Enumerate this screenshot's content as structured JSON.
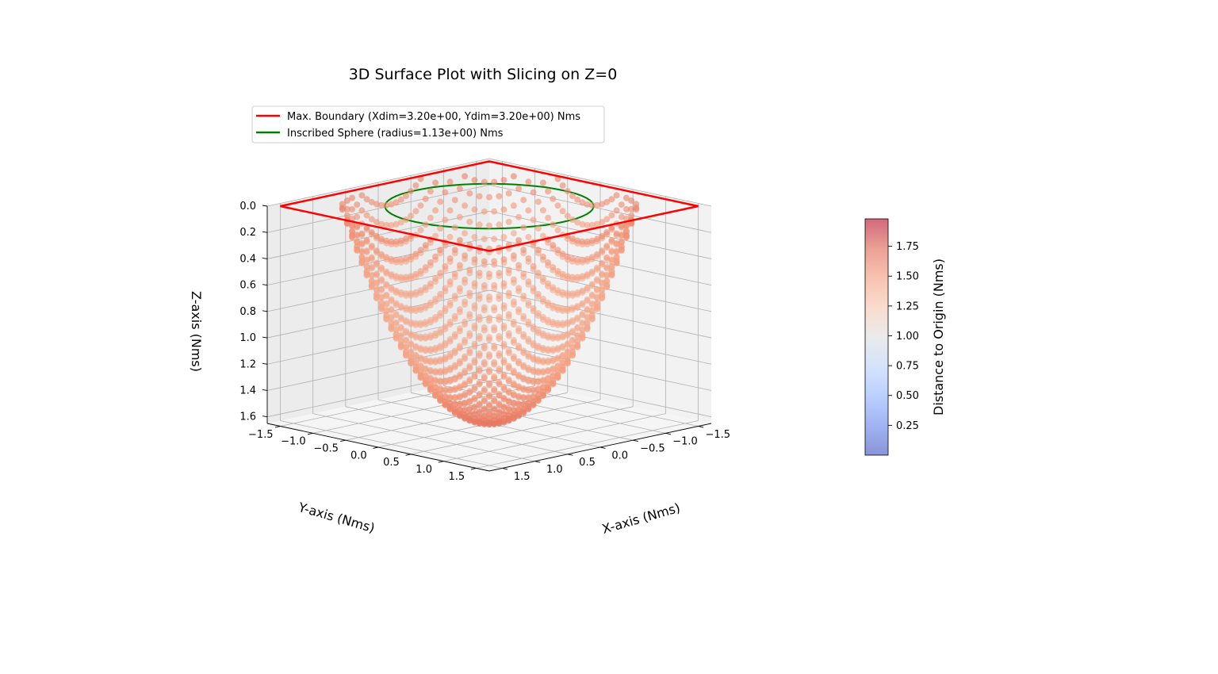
{
  "chart_data": {
    "type": "scatter",
    "projection": "3d",
    "title": "3D Surface Plot with Slicing on Z=0",
    "xlabel": "X-axis (Nms)",
    "ylabel": "Y-axis (Nms)",
    "zlabel": "Z-axis (Nms)",
    "x_ticks": [
      -1.5,
      -1.0,
      -0.5,
      0.0,
      0.5,
      1.0,
      1.5
    ],
    "x_tick_labels": [
      "−1.5",
      "−1.0",
      "−0.5",
      "0.0",
      "0.5",
      "1.0",
      "1.5"
    ],
    "y_ticks": [
      -1.5,
      -1.0,
      -0.5,
      0.0,
      0.5,
      1.0,
      1.5
    ],
    "y_tick_labels": [
      "−1.5",
      "−1.0",
      "−0.5",
      "0.0",
      "0.5",
      "1.0",
      "1.5"
    ],
    "z_ticks": [
      0.0,
      0.2,
      0.4,
      0.6,
      0.8,
      1.0,
      1.2,
      1.4,
      1.6
    ],
    "z_tick_labels": [
      "0.0",
      "0.2",
      "0.4",
      "0.6",
      "0.8",
      "1.0",
      "1.2",
      "1.4",
      "1.6"
    ],
    "xlim": [
      -1.7,
      1.7
    ],
    "ylim": [
      -1.7,
      1.7
    ],
    "zlim": [
      0.0,
      1.65
    ],
    "z_axis_inverted": true,
    "grid": true,
    "legend_position": "upper-left",
    "series": [
      {
        "name": "Max. Boundary (Xdim=3.20e+00, Ydim=3.20e+00) Nms",
        "kind": "line",
        "color": "#ff0000",
        "x": [
          1.6,
          -1.6,
          -1.6,
          1.6,
          1.6
        ],
        "y": [
          1.6,
          1.6,
          -1.6,
          -1.6,
          1.6
        ],
        "z": [
          0,
          0,
          0,
          0,
          0
        ]
      },
      {
        "name": "Inscribed Sphere (radius=1.13e+00) Nms",
        "kind": "line",
        "color": "#008000",
        "radius": 1.13,
        "z": 0
      },
      {
        "name": "",
        "kind": "scatter",
        "colormap": "coolwarm",
        "color_value": "distance to origin",
        "surface": "bowl z = 1.65 - 1.65 r² / 1.6², for r ≤ 1.6"
      }
    ],
    "colorbar": {
      "label": "Distance to Origin (Nms)",
      "ticks": [
        0.25,
        0.5,
        0.75,
        1.0,
        1.25,
        1.5,
        1.75
      ],
      "tick_labels": [
        "0.25",
        "0.50",
        "0.75",
        "1.00",
        "1.25",
        "1.50",
        "1.75"
      ],
      "range": [
        0.0,
        1.98
      ],
      "colormap": "coolwarm",
      "alpha": 0.6
    }
  }
}
